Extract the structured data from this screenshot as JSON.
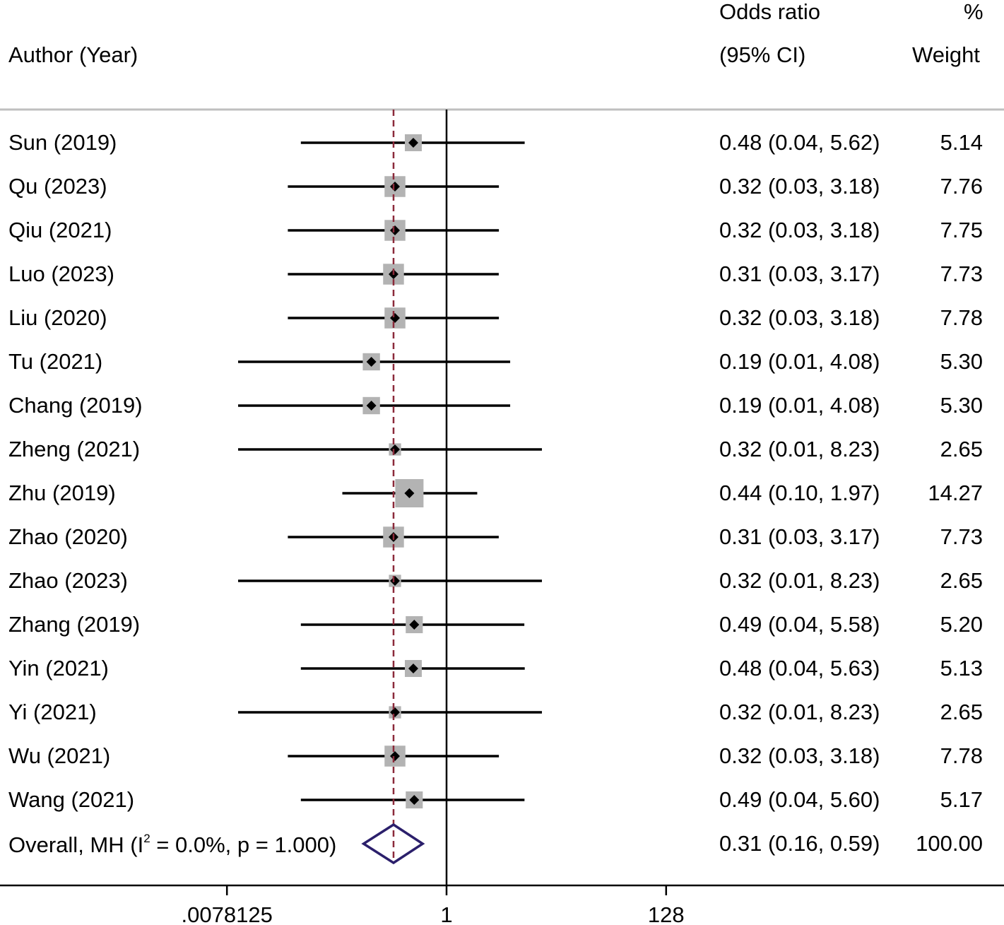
{
  "header": {
    "author_label": "Author (Year)",
    "or_label_1": "Odds ratio",
    "or_label_2": "(95% CI)",
    "weight_label_1": "%",
    "weight_label_2": "Weight"
  },
  "chart_data": {
    "type": "forest",
    "x_scale": "log2",
    "xlim": [
      0.0078125,
      128
    ],
    "x_ticks": [
      {
        "value": 0.0078125,
        "label": ".0078125"
      },
      {
        "value": 1,
        "label": "1"
      },
      {
        "value": 128,
        "label": "128"
      }
    ],
    "null_line": 1,
    "pooled_line": 0.31,
    "studies": [
      {
        "label": "Sun (2019)",
        "or": 0.48,
        "lo": 0.04,
        "hi": 5.62,
        "weight": 5.14,
        "ci_text": "0.48 (0.04, 5.62)",
        "weight_text": "5.14"
      },
      {
        "label": "Qu (2023)",
        "or": 0.32,
        "lo": 0.03,
        "hi": 3.18,
        "weight": 7.76,
        "ci_text": "0.32 (0.03, 3.18)",
        "weight_text": "7.76"
      },
      {
        "label": "Qiu (2021)",
        "or": 0.32,
        "lo": 0.03,
        "hi": 3.18,
        "weight": 7.75,
        "ci_text": "0.32 (0.03, 3.18)",
        "weight_text": "7.75"
      },
      {
        "label": "Luo (2023)",
        "or": 0.31,
        "lo": 0.03,
        "hi": 3.17,
        "weight": 7.73,
        "ci_text": "0.31 (0.03, 3.17)",
        "weight_text": "7.73"
      },
      {
        "label": "Liu (2020)",
        "or": 0.32,
        "lo": 0.03,
        "hi": 3.18,
        "weight": 7.78,
        "ci_text": "0.32 (0.03, 3.18)",
        "weight_text": "7.78"
      },
      {
        "label": "Tu (2021)",
        "or": 0.19,
        "lo": 0.01,
        "hi": 4.08,
        "weight": 5.3,
        "ci_text": "0.19 (0.01, 4.08)",
        "weight_text": "5.30"
      },
      {
        "label": "Chang (2019)",
        "or": 0.19,
        "lo": 0.01,
        "hi": 4.08,
        "weight": 5.3,
        "ci_text": "0.19 (0.01, 4.08)",
        "weight_text": "5.30"
      },
      {
        "label": "Zheng (2021)",
        "or": 0.32,
        "lo": 0.01,
        "hi": 8.23,
        "weight": 2.65,
        "ci_text": "0.32 (0.01, 8.23)",
        "weight_text": "2.65"
      },
      {
        "label": "Zhu (2019)",
        "or": 0.44,
        "lo": 0.1,
        "hi": 1.97,
        "weight": 14.27,
        "ci_text": "0.44 (0.10, 1.97)",
        "weight_text": "14.27"
      },
      {
        "label": "Zhao (2020)",
        "or": 0.31,
        "lo": 0.03,
        "hi": 3.17,
        "weight": 7.73,
        "ci_text": "0.31 (0.03, 3.17)",
        "weight_text": "7.73"
      },
      {
        "label": "Zhao (2023)",
        "or": 0.32,
        "lo": 0.01,
        "hi": 8.23,
        "weight": 2.65,
        "ci_text": "0.32 (0.01, 8.23)",
        "weight_text": "2.65"
      },
      {
        "label": "Zhang (2019)",
        "or": 0.49,
        "lo": 0.04,
        "hi": 5.58,
        "weight": 5.2,
        "ci_text": "0.49 (0.04, 5.58)",
        "weight_text": "5.20"
      },
      {
        "label": "Yin (2021)",
        "or": 0.48,
        "lo": 0.04,
        "hi": 5.63,
        "weight": 5.13,
        "ci_text": "0.48 (0.04, 5.63)",
        "weight_text": "5.13"
      },
      {
        "label": "Yi (2021)",
        "or": 0.32,
        "lo": 0.01,
        "hi": 8.23,
        "weight": 2.65,
        "ci_text": "0.32 (0.01, 8.23)",
        "weight_text": "2.65"
      },
      {
        "label": "Wu (2021)",
        "or": 0.32,
        "lo": 0.03,
        "hi": 3.18,
        "weight": 7.78,
        "ci_text": "0.32 (0.03, 3.18)",
        "weight_text": "7.78"
      },
      {
        "label": "Wang (2021)",
        "or": 0.49,
        "lo": 0.04,
        "hi": 5.6,
        "weight": 5.17,
        "ci_text": "0.49 (0.04, 5.60)",
        "weight_text": "5.17"
      }
    ],
    "overall": {
      "label_prefix": "Overall, MH (I",
      "label_sup": "2",
      "label_suffix": " = 0.0%, p = 1.000)",
      "or": 0.31,
      "lo": 0.16,
      "hi": 0.59,
      "weight": 100.0,
      "ci_text": "0.31 (0.16, 0.59)",
      "weight_text": "100.00"
    },
    "colors": {
      "ci_line": "#000000",
      "box": "#b3b3b3",
      "point": "#000000",
      "pooled_line": "#8b2a3a",
      "diamond": "#2b1f6b",
      "rule": "#bfbfbf"
    }
  }
}
